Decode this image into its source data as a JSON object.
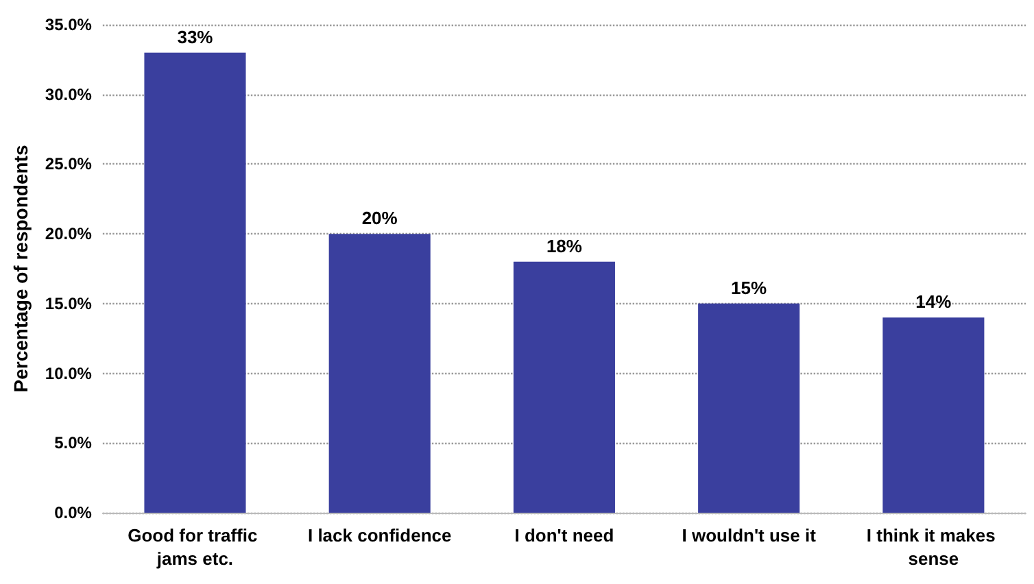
{
  "chart_data": {
    "type": "bar",
    "ylabel": "Percentage of respondents",
    "categories": [
      "Good for traffic jams etc.",
      "I lack confidence",
      "I don't need",
      "I wouldn't use it",
      "I think it makes sense"
    ],
    "values": [
      33,
      20,
      18,
      15,
      14
    ],
    "value_labels": [
      "33%",
      "20%",
      "18%",
      "15%",
      "14%"
    ],
    "color": "#3a3f9e",
    "ylim": [
      0,
      35
    ],
    "yticks": [
      {
        "value": 0,
        "label": "0.0%"
      },
      {
        "value": 5,
        "label": "5.0%"
      },
      {
        "value": 10,
        "label": "10.0%"
      },
      {
        "value": 15,
        "label": "15.0%"
      },
      {
        "value": 20,
        "label": "20.0%"
      },
      {
        "value": 25,
        "label": "25.0%"
      },
      {
        "value": 30,
        "label": "30.0%"
      },
      {
        "value": 35,
        "label": "35.0%"
      }
    ],
    "grid": "y"
  }
}
